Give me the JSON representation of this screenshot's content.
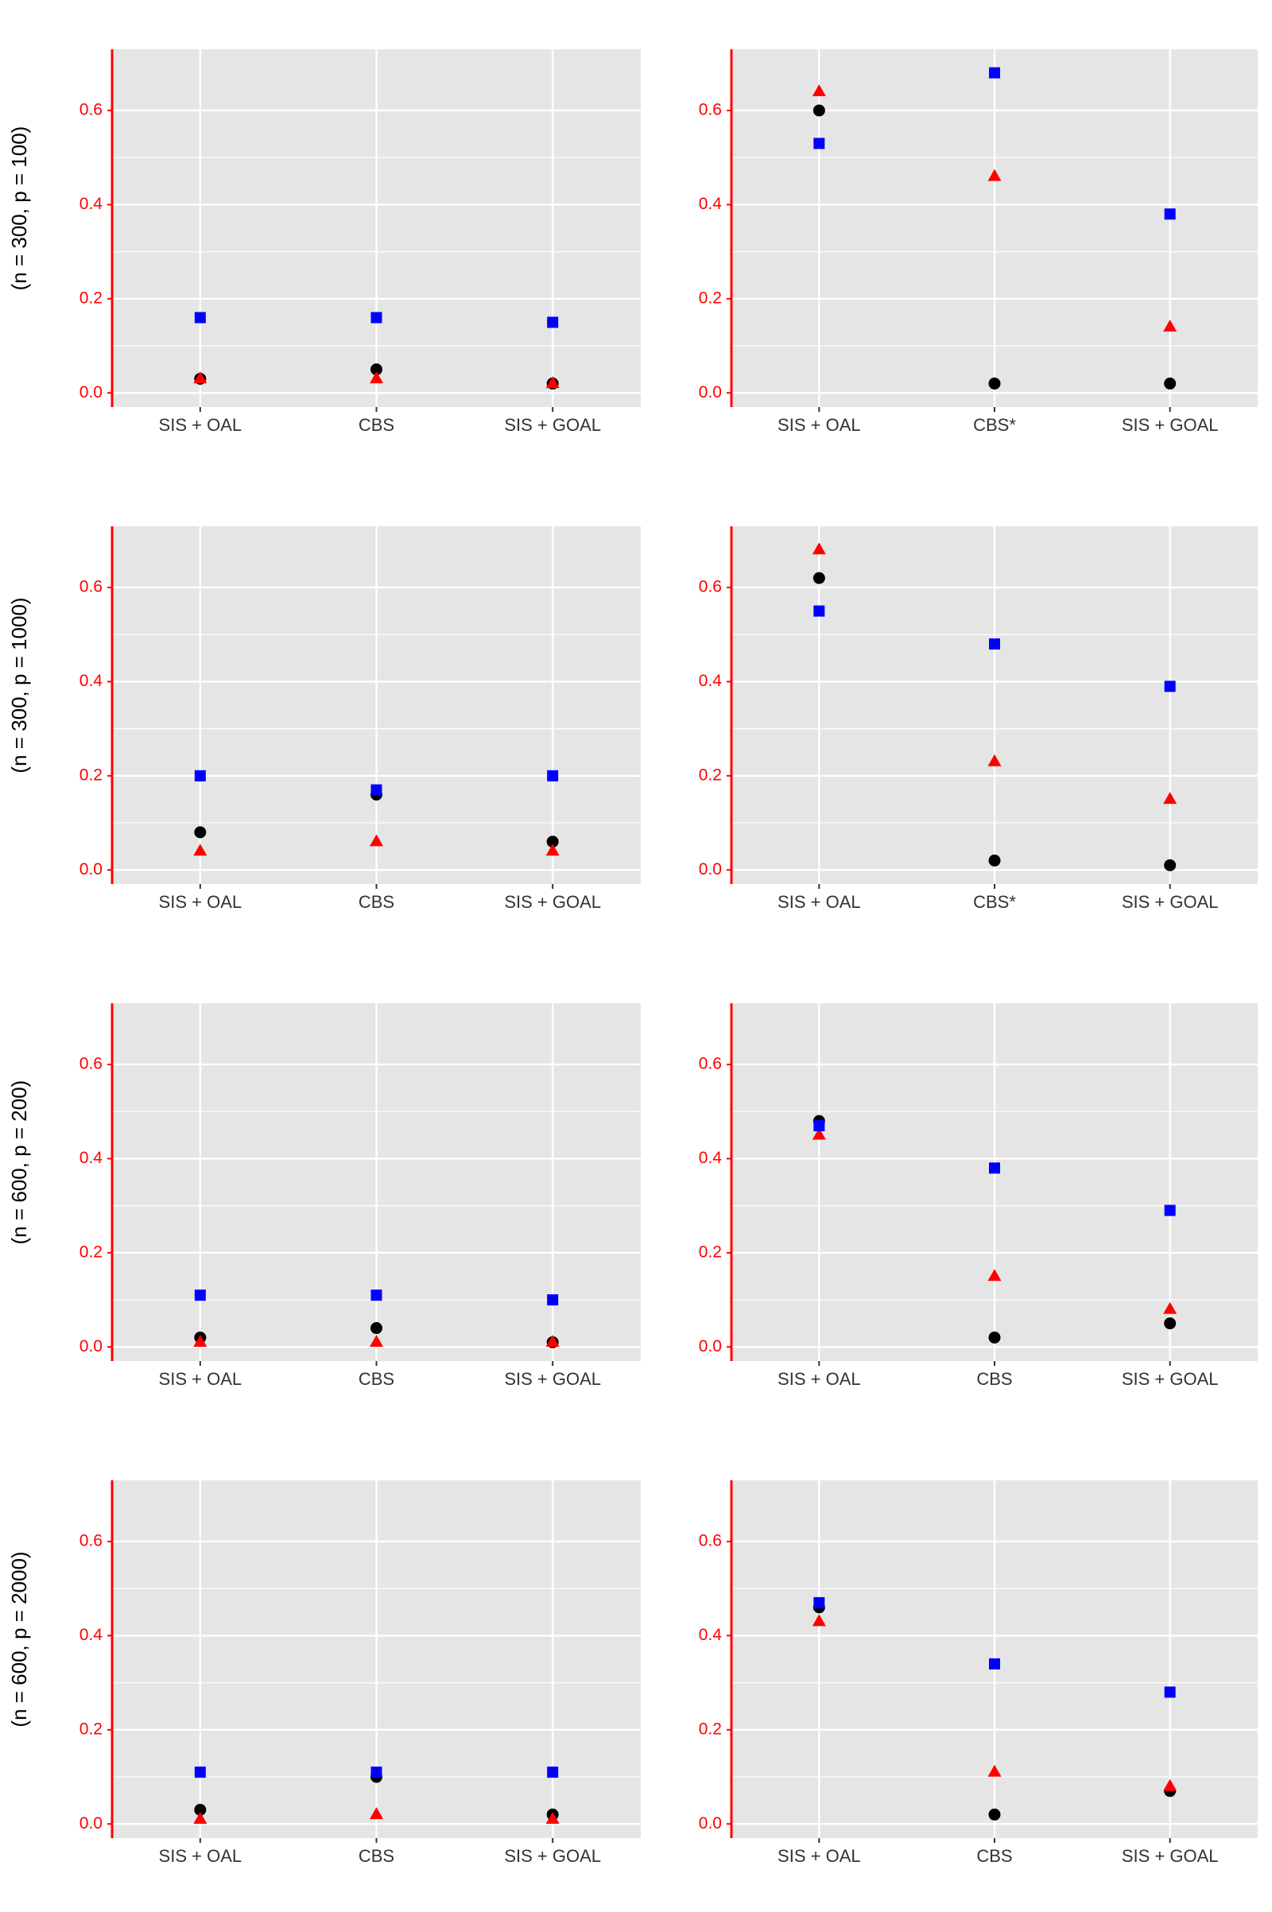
{
  "figure": {
    "row_labels": [
      "(n = 300, p = 100)",
      "(n = 300, p = 1000)",
      "(n = 600, p = 200)",
      "(n = 600, p = 2000)"
    ]
  },
  "colors": {
    "panel_bg": "#e5e5e5",
    "grid": "#ffffff",
    "axis": "#ff0000",
    "tick_label_y": "#ff0000",
    "tick_label_x": "#333333",
    "row_label": "#000000"
  },
  "series_styles": [
    {
      "key": "circle",
      "shape": "circle",
      "color": "#000000"
    },
    {
      "key": "triangle",
      "shape": "triangle",
      "color": "#ff0000"
    },
    {
      "key": "square",
      "shape": "square",
      "color": "#0000ff"
    }
  ],
  "chart_data": [
    {
      "type": "scatter",
      "row": 0,
      "col": 0,
      "categories": [
        "SIS + OAL",
        "CBS",
        "SIS + GOAL"
      ],
      "yticks": [
        "0.0",
        "0.2",
        "0.4",
        "0.6"
      ],
      "ylim": [
        -0.03,
        0.73
      ],
      "grid": true,
      "series": [
        {
          "values": [
            0.03,
            0.05,
            0.02
          ]
        },
        {
          "values": [
            0.03,
            0.03,
            0.02
          ]
        },
        {
          "values": [
            0.16,
            0.16,
            0.15
          ]
        }
      ]
    },
    {
      "type": "scatter",
      "row": 0,
      "col": 1,
      "categories": [
        "SIS + OAL",
        "CBS*",
        "SIS + GOAL"
      ],
      "yticks": [
        "0.0",
        "0.2",
        "0.4",
        "0.6"
      ],
      "ylim": [
        -0.03,
        0.73
      ],
      "grid": true,
      "series": [
        {
          "values": [
            0.6,
            0.02,
            0.02
          ]
        },
        {
          "values": [
            0.64,
            0.46,
            0.14
          ]
        },
        {
          "values": [
            0.53,
            0.68,
            0.38
          ]
        }
      ]
    },
    {
      "type": "scatter",
      "row": 1,
      "col": 0,
      "categories": [
        "SIS + OAL",
        "CBS",
        "SIS + GOAL"
      ],
      "yticks": [
        "0.0",
        "0.2",
        "0.4",
        "0.6"
      ],
      "ylim": [
        -0.03,
        0.73
      ],
      "grid": true,
      "series": [
        {
          "values": [
            0.08,
            0.16,
            0.06
          ]
        },
        {
          "values": [
            0.04,
            0.06,
            0.04
          ]
        },
        {
          "values": [
            0.2,
            0.17,
            0.2
          ]
        }
      ]
    },
    {
      "type": "scatter",
      "row": 1,
      "col": 1,
      "categories": [
        "SIS + OAL",
        "CBS*",
        "SIS + GOAL"
      ],
      "yticks": [
        "0.0",
        "0.2",
        "0.4",
        "0.6"
      ],
      "ylim": [
        -0.03,
        0.73
      ],
      "grid": true,
      "series": [
        {
          "values": [
            0.62,
            0.02,
            0.01
          ]
        },
        {
          "values": [
            0.68,
            0.23,
            0.15
          ]
        },
        {
          "values": [
            0.55,
            0.48,
            0.39
          ]
        }
      ]
    },
    {
      "type": "scatter",
      "row": 2,
      "col": 0,
      "categories": [
        "SIS + OAL",
        "CBS",
        "SIS + GOAL"
      ],
      "yticks": [
        "0.0",
        "0.2",
        "0.4",
        "0.6"
      ],
      "ylim": [
        -0.03,
        0.73
      ],
      "grid": true,
      "series": [
        {
          "values": [
            0.02,
            0.04,
            0.01
          ]
        },
        {
          "values": [
            0.01,
            0.01,
            0.01
          ]
        },
        {
          "values": [
            0.11,
            0.11,
            0.1
          ]
        }
      ]
    },
    {
      "type": "scatter",
      "row": 2,
      "col": 1,
      "categories": [
        "SIS + OAL",
        "CBS",
        "SIS + GOAL"
      ],
      "yticks": [
        "0.0",
        "0.2",
        "0.4",
        "0.6"
      ],
      "ylim": [
        -0.03,
        0.73
      ],
      "grid": true,
      "series": [
        {
          "values": [
            0.48,
            0.02,
            0.05
          ]
        },
        {
          "values": [
            0.45,
            0.15,
            0.08
          ]
        },
        {
          "values": [
            0.47,
            0.38,
            0.29
          ]
        }
      ]
    },
    {
      "type": "scatter",
      "row": 3,
      "col": 0,
      "categories": [
        "SIS + OAL",
        "CBS",
        "SIS + GOAL"
      ],
      "yticks": [
        "0.0",
        "0.2",
        "0.4",
        "0.6"
      ],
      "ylim": [
        -0.03,
        0.73
      ],
      "grid": true,
      "series": [
        {
          "values": [
            0.03,
            0.1,
            0.02
          ]
        },
        {
          "values": [
            0.01,
            0.02,
            0.01
          ]
        },
        {
          "values": [
            0.11,
            0.11,
            0.11
          ]
        }
      ]
    },
    {
      "type": "scatter",
      "row": 3,
      "col": 1,
      "categories": [
        "SIS + OAL",
        "CBS",
        "SIS + GOAL"
      ],
      "yticks": [
        "0.0",
        "0.2",
        "0.4",
        "0.6"
      ],
      "ylim": [
        -0.03,
        0.73
      ],
      "grid": true,
      "series": [
        {
          "values": [
            0.46,
            0.02,
            0.07
          ]
        },
        {
          "values": [
            0.43,
            0.11,
            0.08
          ]
        },
        {
          "values": [
            0.47,
            0.34,
            0.28
          ]
        }
      ]
    }
  ]
}
